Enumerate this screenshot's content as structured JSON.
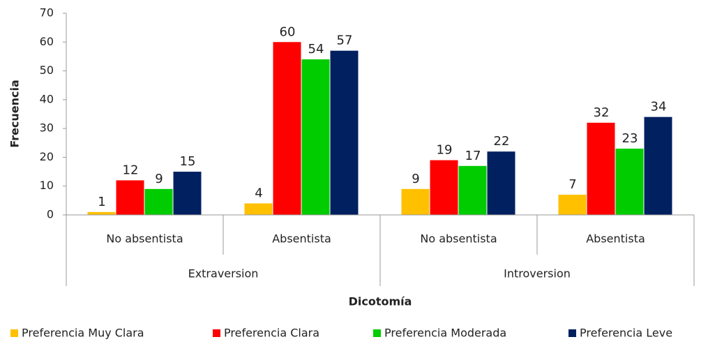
{
  "chart_data": {
    "type": "bar",
    "xlabel": "Dicotomía",
    "ylabel": "Frecuencia",
    "groups": [
      "Extraversion",
      "Introversion"
    ],
    "categories": [
      "No absentista",
      "Absentista",
      "No absentista",
      "Absentista"
    ],
    "series": [
      {
        "name": "Preferencia Muy Clara",
        "color": "#ffc000",
        "values": [
          1,
          4,
          9,
          7
        ]
      },
      {
        "name": "Preferencia Clara",
        "color": "#ff0000",
        "values": [
          12,
          60,
          19,
          32
        ]
      },
      {
        "name": "Preferencia Moderada",
        "color": "#00cc00",
        "values": [
          9,
          54,
          17,
          23
        ]
      },
      {
        "name": "Preferencia Leve",
        "color": "#002060",
        "values": [
          15,
          57,
          22,
          34
        ]
      }
    ],
    "ylim": [
      0,
      70
    ],
    "yticks": [
      0,
      10,
      20,
      30,
      40,
      50,
      60,
      70
    ],
    "grid": false,
    "legend": "bottom"
  }
}
